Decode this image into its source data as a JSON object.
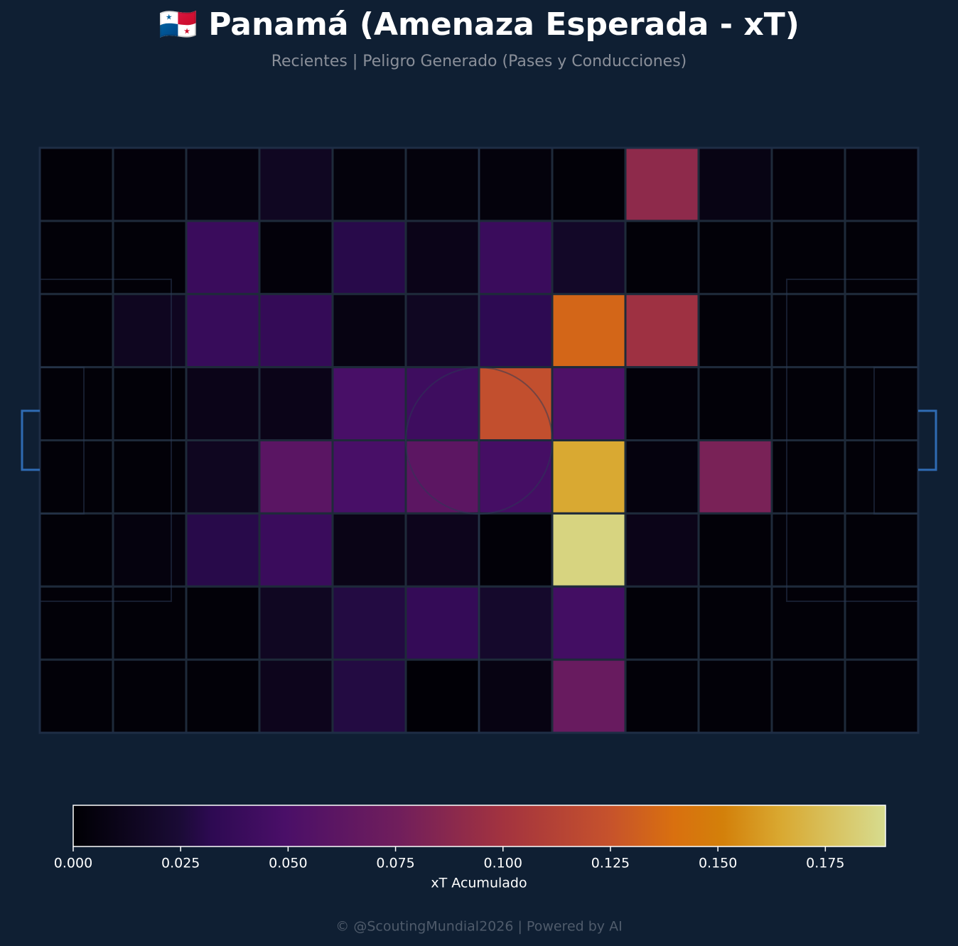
{
  "chart_data": {
    "type": "heatmap",
    "title": "🇵🇦 Panamá (Amenaza Esperada - xT)",
    "subtitle": "Recientes | Peligro Generado (Pases y Conducciones)",
    "colormap": "inferno",
    "values": [
      [
        0.002,
        0.003,
        0.005,
        0.015,
        0.004,
        0.004,
        0.004,
        0.002,
        0.09,
        0.008,
        0.003,
        0.003
      ],
      [
        0.002,
        0.002,
        0.04,
        0.003,
        0.03,
        0.01,
        0.04,
        0.018,
        0.002,
        0.002,
        0.002,
        0.002
      ],
      [
        0.002,
        0.014,
        0.038,
        0.036,
        0.007,
        0.015,
        0.032,
        0.135,
        0.098,
        0.002,
        0.002,
        0.002
      ],
      [
        0.002,
        0.002,
        0.01,
        0.01,
        0.048,
        0.042,
        0.122,
        0.052,
        0.003,
        0.002,
        0.002,
        0.002
      ],
      [
        0.002,
        0.002,
        0.014,
        0.06,
        0.048,
        0.062,
        0.046,
        0.165,
        0.005,
        0.08,
        0.002,
        0.002
      ],
      [
        0.002,
        0.005,
        0.03,
        0.04,
        0.009,
        0.012,
        0.002,
        0.185,
        0.01,
        0.002,
        0.002,
        0.002
      ],
      [
        0.002,
        0.002,
        0.002,
        0.015,
        0.028,
        0.036,
        0.02,
        0.045,
        0.002,
        0.002,
        0.002,
        0.002
      ],
      [
        0.002,
        0.002,
        0.002,
        0.012,
        0.028,
        0.001,
        0.007,
        0.07,
        0.002,
        0.002,
        0.002,
        0.002
      ]
    ],
    "clim": [
      0,
      0.189
    ],
    "colorbar_ticks": [
      {
        "value": 0,
        "label": "0.000"
      },
      {
        "value": 0.025,
        "label": "0.025"
      },
      {
        "value": 0.05,
        "label": "0.050"
      },
      {
        "value": 0.075,
        "label": "0.075"
      },
      {
        "value": 0.1,
        "label": "0.100"
      },
      {
        "value": 0.125,
        "label": "0.125"
      },
      {
        "value": 0.15,
        "label": "0.150"
      },
      {
        "value": 0.175,
        "label": "0.175"
      }
    ],
    "colorbar_label": "xT Acumulado",
    "footer": "© @ScoutingMundial2026 | Powered by AI"
  }
}
